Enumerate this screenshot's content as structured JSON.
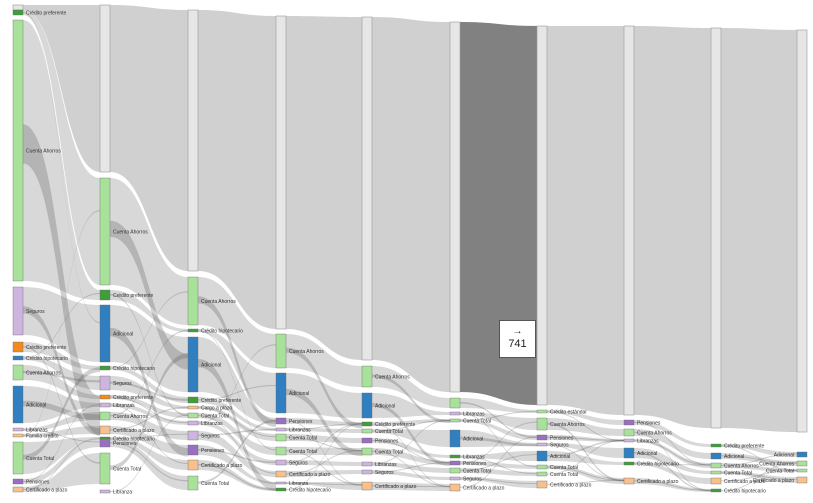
{
  "colors": {
    "link": "#c8c8c8",
    "link_highlight": "#7a7a7a",
    "link_cross": "#555555",
    "bar": "#e6e6e6",
    "green": "#a8e29a",
    "darkgreen": "#3f9e3a",
    "purple": "#cdb5df",
    "violet": "#9a6fc2",
    "orange": "#f28a1e",
    "peach": "#f7c08c",
    "blue": "#2f7fc1"
  },
  "tooltip": {
    "arrow": "→",
    "value": "741"
  },
  "columns": [
    {
      "bar": [
        5,
        10
      ],
      "nodes": [
        {
          "label": "Crédito preferente",
          "v0": 10,
          "v1": 15,
          "color": "darkgreen"
        },
        {
          "label": "Cuenta Ahorros",
          "v0": 20,
          "v1": 281,
          "color": "green"
        },
        {
          "label": "Seguros",
          "v0": 287,
          "v1": 335,
          "color": "purple"
        },
        {
          "label": "Crédito preferente",
          "v0": 342,
          "v1": 352,
          "color": "orange"
        },
        {
          "label": "Crédito hipotecario",
          "v0": 356,
          "v1": 360,
          "color": "blue"
        },
        {
          "label": "Cuenta Ahorros",
          "v0": 365,
          "v1": 380,
          "color": "green"
        },
        {
          "label": "Adicional",
          "v0": 386,
          "v1": 423,
          "color": "blue"
        },
        {
          "label": "Libranzas",
          "v0": 428,
          "v1": 431,
          "color": "purple"
        },
        {
          "label": "Familia crédito",
          "v0": 434,
          "v1": 437,
          "color": "peach"
        },
        {
          "label": "Cuenta Total",
          "v0": 442,
          "v1": 474,
          "color": "green"
        },
        {
          "label": "Pensiones",
          "v0": 479,
          "v1": 484,
          "color": "violet"
        },
        {
          "label": "Certificado a plazo",
          "v0": 487,
          "v1": 492,
          "color": "peach"
        }
      ]
    },
    {
      "bar": [
        5,
        172
      ],
      "nodes": [
        {
          "label": "Cuenta Ahorros",
          "v0": 178,
          "v1": 285,
          "color": "green"
        },
        {
          "label": "Crédito preferente",
          "v0": 290,
          "v1": 300,
          "color": "darkgreen"
        },
        {
          "label": "Adicional",
          "v0": 305,
          "v1": 362,
          "color": "blue"
        },
        {
          "label": "Crédito hipotecario",
          "v0": 366,
          "v1": 370,
          "color": "darkgreen"
        },
        {
          "label": "Seguros",
          "v0": 376,
          "v1": 390,
          "color": "purple"
        },
        {
          "label": "Crédito preferente",
          "v0": 395,
          "v1": 399,
          "color": "orange"
        },
        {
          "label": "Libranzas",
          "v0": 403,
          "v1": 407,
          "color": "purple"
        },
        {
          "label": "Cuenta Ahorros",
          "v0": 412,
          "v1": 420,
          "color": "green"
        },
        {
          "label": "Certificado a plazo",
          "v0": 426,
          "v1": 434,
          "color": "peach"
        },
        {
          "label": "Crédito hipotecario",
          "v0": 437,
          "v1": 440,
          "color": "darkgreen"
        },
        {
          "label": "Pensiones",
          "v0": 439,
          "v1": 447,
          "color": "violet"
        },
        {
          "label": "Cuenta Total",
          "v0": 453,
          "v1": 484,
          "color": "green"
        },
        {
          "label": "Libranza",
          "v0": 490,
          "v1": 493,
          "color": "purple"
        }
      ]
    },
    {
      "bar": [
        10,
        271
      ],
      "nodes": [
        {
          "label": "Cuenta Ahorros",
          "v0": 277,
          "v1": 325,
          "color": "green"
        },
        {
          "label": "Crédito hipotecario",
          "v0": 329,
          "v1": 332,
          "color": "darkgreen"
        },
        {
          "label": "Adicional",
          "v0": 337,
          "v1": 392,
          "color": "blue"
        },
        {
          "label": "Crédito preferente",
          "v0": 397,
          "v1": 403,
          "color": "darkgreen"
        },
        {
          "label": "Cargo a plazo",
          "v0": 406,
          "v1": 409,
          "color": "peach"
        },
        {
          "label": "Cuenta Total",
          "v0": 413,
          "v1": 418,
          "color": "green"
        },
        {
          "label": "Libranzas",
          "v0": 421,
          "v1": 425,
          "color": "purple"
        },
        {
          "label": "Seguros",
          "v0": 431,
          "v1": 440,
          "color": "purple"
        },
        {
          "label": "Pensiones",
          "v0": 445,
          "v1": 455,
          "color": "violet"
        },
        {
          "label": "Certificado a plazo",
          "v0": 460,
          "v1": 470,
          "color": "peach"
        },
        {
          "label": "Cuenta Total",
          "v0": 476,
          "v1": 490,
          "color": "green"
        }
      ]
    },
    {
      "bar": [
        16,
        329
      ],
      "nodes": [
        {
          "label": "Cuenta Ahorros",
          "v0": 334,
          "v1": 368,
          "color": "green"
        },
        {
          "label": "Adicional",
          "v0": 373,
          "v1": 413,
          "color": "blue"
        },
        {
          "label": "Pensiones",
          "v0": 418,
          "v1": 424,
          "color": "violet"
        },
        {
          "label": "Libranzas",
          "v0": 428,
          "v1": 431,
          "color": "purple"
        },
        {
          "label": "Cuenta Total",
          "v0": 434,
          "v1": 441,
          "color": "green"
        },
        {
          "label": "Cuenta Total",
          "v0": 447,
          "v1": 455,
          "color": "green"
        },
        {
          "label": "Seguros",
          "v0": 460,
          "v1": 465,
          "color": "purple"
        },
        {
          "label": "Certificado a plazo",
          "v0": 471,
          "v1": 477,
          "color": "peach"
        },
        {
          "label": "Libranza",
          "v0": 482,
          "v1": 484,
          "color": "purple"
        },
        {
          "label": "Crédito hipotecario",
          "v0": 488,
          "v1": 491,
          "color": "darkgreen"
        }
      ]
    },
    {
      "bar": [
        17,
        360
      ],
      "nodes": [
        {
          "label": "Cuenta Ahorros",
          "v0": 366,
          "v1": 387,
          "color": "green"
        },
        {
          "label": "Adicional",
          "v0": 393,
          "v1": 418,
          "color": "blue"
        },
        {
          "label": "Crédito preferente",
          "v0": 422,
          "v1": 426,
          "color": "darkgreen"
        },
        {
          "label": "Cuenta Total",
          "v0": 429,
          "v1": 433,
          "color": "green"
        },
        {
          "label": "Pensiones",
          "v0": 438,
          "v1": 443,
          "color": "violet"
        },
        {
          "label": "Cuenta Total",
          "v0": 448,
          "v1": 455,
          "color": "green"
        },
        {
          "label": "Libranzas",
          "v0": 462,
          "v1": 466,
          "color": "purple"
        },
        {
          "label": "Seguros",
          "v0": 470,
          "v1": 474,
          "color": "purple"
        },
        {
          "label": "Certificado a plazo",
          "v0": 482,
          "v1": 490,
          "color": "peach"
        }
      ]
    },
    {
      "bar": [
        22,
        392
      ],
      "nodes": [
        {
          "label": "",
          "v0": 398,
          "v1": 408,
          "color": "green"
        },
        {
          "label": "Libranzas",
          "v0": 412,
          "v1": 415,
          "color": "purple"
        },
        {
          "label": "Cuenta Total",
          "v0": 419,
          "v1": 422,
          "color": "green"
        },
        {
          "label": "Adicional",
          "v0": 430,
          "v1": 447,
          "color": "blue"
        },
        {
          "label": "Libranzas",
          "v0": 455,
          "v1": 458,
          "color": "darkgreen"
        },
        {
          "label": "Pensiones",
          "v0": 461,
          "v1": 465,
          "color": "violet"
        },
        {
          "label": "Cuenta Total",
          "v0": 468,
          "v1": 473,
          "color": "green"
        },
        {
          "label": "Seguros",
          "v0": 477,
          "v1": 480,
          "color": "purple"
        },
        {
          "label": "Certificado a plazo",
          "v0": 484,
          "v1": 491,
          "color": "peach"
        }
      ]
    },
    {
      "bar": [
        26,
        405
      ],
      "nodes": [
        {
          "label": "Crédito estándar",
          "v0": 410,
          "v1": 413,
          "color": "green"
        },
        {
          "label": "Cuenta Ahorros",
          "v0": 418,
          "v1": 430,
          "color": "green"
        },
        {
          "label": "Pensiones",
          "v0": 435,
          "v1": 440,
          "color": "violet"
        },
        {
          "label": "Seguros",
          "v0": 443,
          "v1": 446,
          "color": "purple"
        },
        {
          "label": "Adicional",
          "v0": 451,
          "v1": 461,
          "color": "blue"
        },
        {
          "label": "Cuenta Total",
          "v0": 465,
          "v1": 469,
          "color": "green"
        },
        {
          "label": "Cuenta Total",
          "v0": 472,
          "v1": 476,
          "color": "green"
        },
        {
          "label": "Certificado a plazo",
          "v0": 481,
          "v1": 488,
          "color": "peach"
        }
      ]
    },
    {
      "bar": [
        26,
        415
      ],
      "nodes": [
        {
          "label": "Pensiones",
          "v0": 420,
          "v1": 425,
          "color": "violet"
        },
        {
          "label": "Cuenta Ahorros",
          "v0": 429,
          "v1": 436,
          "color": "green"
        },
        {
          "label": "Libranzas",
          "v0": 439,
          "v1": 442,
          "color": "purple"
        },
        {
          "label": "Adicional",
          "v0": 448,
          "v1": 458,
          "color": "blue"
        },
        {
          "label": "Crédito hipotecario",
          "v0": 462,
          "v1": 465,
          "color": "darkgreen"
        },
        {
          "label": "Certificado a plazo",
          "v0": 478,
          "v1": 484,
          "color": "peach"
        }
      ]
    },
    {
      "bar": [
        28,
        428
      ],
      "nodes": [
        {
          "label": "Crédito preferente",
          "v0": 444,
          "v1": 447,
          "color": "darkgreen"
        },
        {
          "label": "Adicional",
          "v0": 453,
          "v1": 459,
          "color": "blue"
        },
        {
          "label": "Cuenta Ahorros",
          "v0": 463,
          "v1": 468,
          "color": "green"
        },
        {
          "label": "Cuenta Total",
          "v0": 471,
          "v1": 474,
          "color": "green"
        },
        {
          "label": "Certificado a plazo",
          "v0": 478,
          "v1": 484,
          "color": "peach"
        },
        {
          "label": "Crédito hipotecario",
          "v0": 489,
          "v1": 492,
          "color": "darkgreen"
        }
      ]
    },
    {
      "bar": [
        30,
        432
      ],
      "nodes": [
        {
          "label": "Adicional",
          "v0": 452,
          "v1": 457,
          "color": "blue"
        },
        {
          "label": "Cuenta Ahorros",
          "v0": 461,
          "v1": 466,
          "color": "green"
        },
        {
          "label": "Cuenta Total",
          "v0": 469,
          "v1": 472,
          "color": "green"
        },
        {
          "label": "Certificado a plazo",
          "v0": 477,
          "v1": 483,
          "color": "peach"
        }
      ]
    }
  ]
}
